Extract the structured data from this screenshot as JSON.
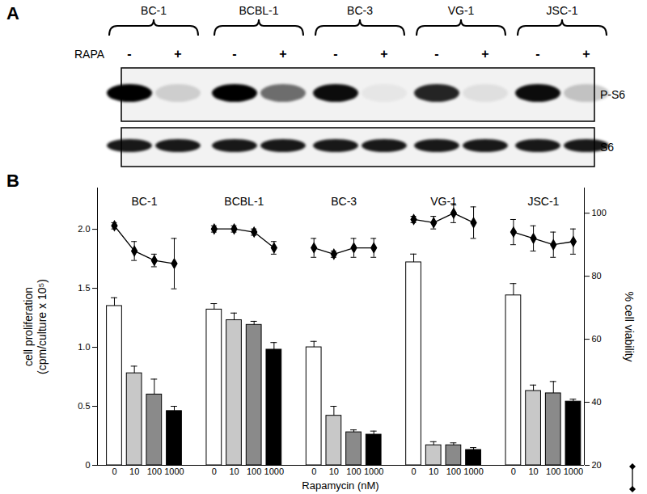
{
  "blot": {
    "panel_label": "A",
    "treatment": "RAPA",
    "cell_lines": [
      "BC-1",
      "BCBL-1",
      "BC-3",
      "VG-1",
      "JSC-1"
    ],
    "lanes": [
      "-",
      "+"
    ],
    "bands": [
      {
        "name": "P-S6",
        "intensity": [
          [
            1.0,
            0.15
          ],
          [
            1.0,
            0.55
          ],
          [
            0.95,
            0.05
          ],
          [
            0.85,
            0.08
          ],
          [
            0.95,
            0.2
          ]
        ]
      },
      {
        "name": "S6",
        "intensity": [
          [
            0.9,
            0.9
          ],
          [
            0.9,
            0.9
          ],
          [
            0.9,
            0.9
          ],
          [
            0.9,
            0.9
          ],
          [
            0.9,
            0.9
          ]
        ]
      }
    ]
  },
  "chart_data": {
    "type": "bar",
    "panel_label": "B",
    "categories": [
      "BC-1",
      "BCBL-1",
      "BC-3",
      "VG-1",
      "JSC-1"
    ],
    "x": [
      0,
      10,
      100,
      1000
    ],
    "x_label": "Rapamycin (nM)",
    "y_label": "cell proliferation\n(cpm/culture x 10⁵)",
    "y2_label": "% cell viability",
    "ylim": [
      0,
      2.35
    ],
    "yticks": [
      0,
      0.5,
      {
        "value": 1,
        "label": "1.0"
      },
      1.5,
      {
        "value": 2,
        "label": "2.0"
      }
    ],
    "y2lim": [
      20,
      108
    ],
    "y2ticks": [
      20,
      40,
      60,
      80,
      100
    ],
    "series": [
      {
        "type": "bar",
        "colors": [
          "#ffffff",
          "#c8c8c8",
          "#8a8a8a",
          "#000000"
        ],
        "values": [
          [
            1.35,
            0.78,
            0.6,
            0.46
          ],
          [
            1.32,
            1.23,
            1.19,
            0.98
          ],
          [
            1.0,
            0.42,
            0.28,
            0.26
          ],
          [
            1.72,
            0.17,
            0.17,
            0.13
          ],
          [
            1.44,
            0.63,
            0.61,
            0.54
          ]
        ],
        "errors": [
          [
            0.07,
            0.06,
            0.13,
            0.04
          ],
          [
            0.05,
            0.06,
            0.03,
            0.06
          ],
          [
            0.05,
            0.08,
            0.02,
            0.03
          ],
          [
            0.07,
            0.03,
            0.02,
            0.02
          ],
          [
            0.1,
            0.05,
            0.1,
            0.02
          ]
        ]
      },
      {
        "type": "line",
        "axis": "y2",
        "color": "#000000",
        "marker": "diamond",
        "values": [
          [
            96,
            88,
            85,
            84
          ],
          [
            95,
            95,
            94,
            89
          ],
          [
            89,
            87,
            89,
            89
          ],
          [
            98,
            97,
            100,
            97
          ],
          [
            94,
            92,
            90,
            91
          ]
        ],
        "errors": [
          [
            1,
            3,
            2,
            8
          ],
          [
            1,
            1,
            1,
            2
          ],
          [
            3,
            1,
            3,
            3
          ],
          [
            1,
            2,
            3,
            5
          ],
          [
            4,
            4,
            4,
            4
          ]
        ]
      }
    ]
  }
}
